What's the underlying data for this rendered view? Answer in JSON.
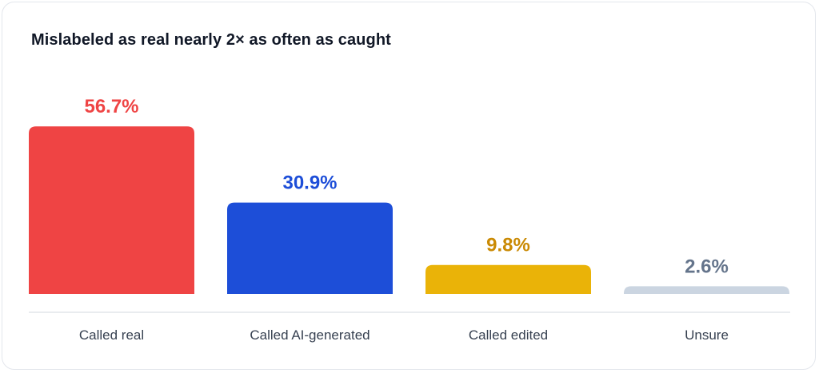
{
  "chart_data": {
    "type": "bar",
    "title": "Mislabeled as real nearly 2× as often as caught",
    "categories": [
      "Called real",
      "Called AI-generated",
      "Called edited",
      "Unsure"
    ],
    "values": [
      56.7,
      30.9,
      9.8,
      2.6
    ],
    "data_labels": [
      "56.7%",
      "30.9%",
      "9.8%",
      "2.6%"
    ],
    "colors": [
      "#ef4444",
      "#1d4ed8",
      "#eab308",
      "#cbd5e1"
    ],
    "label_colors": [
      "#ef4444",
      "#1d4ed8",
      "#ca8a04",
      "#64748b"
    ],
    "unit": "%",
    "grid": false,
    "legend": "none"
  }
}
